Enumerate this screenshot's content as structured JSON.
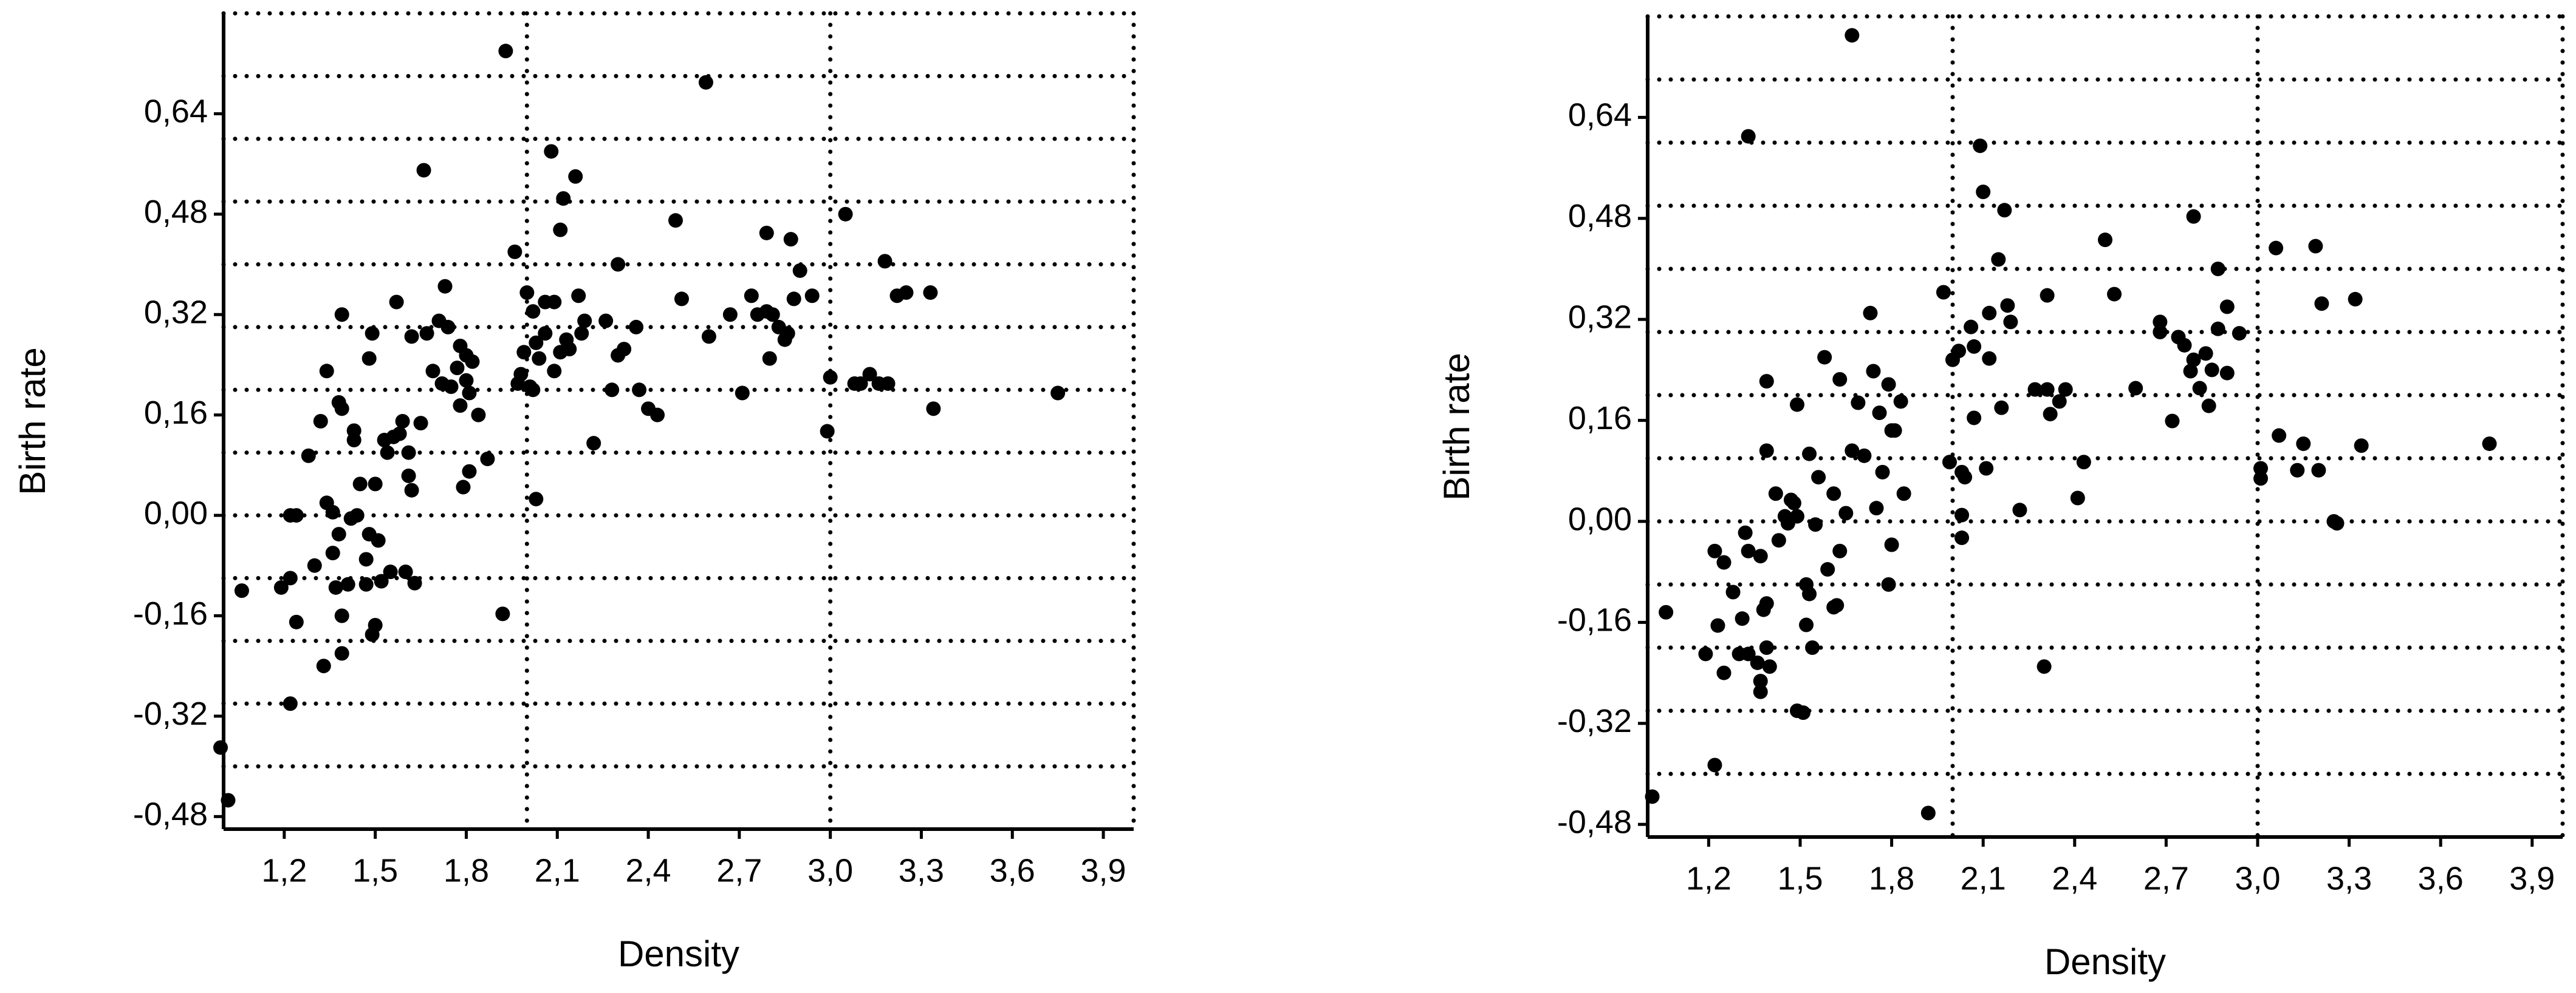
{
  "chart_data": [
    {
      "type": "scatter",
      "x_label": "Density",
      "y_label": "Birth rate",
      "color": "#000000",
      "xlim": [
        1.0,
        4.0
      ],
      "ylim": [
        -0.5,
        0.8
      ],
      "xticks": [
        {
          "value": 1.2,
          "label": "1,2"
        },
        {
          "value": 1.5,
          "label": "1,5"
        },
        {
          "value": 1.8,
          "label": "1,8"
        },
        {
          "value": 2.1,
          "label": "2,1"
        },
        {
          "value": 2.4,
          "label": "2,4"
        },
        {
          "value": 2.7,
          "label": "2,7"
        },
        {
          "value": 3.0,
          "label": "3,0"
        },
        {
          "value": 3.3,
          "label": "3,3"
        },
        {
          "value": 3.6,
          "label": "3,6"
        },
        {
          "value": 3.9,
          "label": "3,9"
        }
      ],
      "yticks": [
        {
          "value": 0.64,
          "label": "0,64"
        },
        {
          "value": 0.48,
          "label": "0,48"
        },
        {
          "value": 0.32,
          "label": "0,32"
        },
        {
          "value": 0.16,
          "label": "0,16"
        },
        {
          "value": 0,
          "label": "0,00"
        },
        {
          "value": -0.16,
          "label": "-0,16"
        },
        {
          "value": -0.32,
          "label": "-0,32"
        },
        {
          "value": -0.48,
          "label": "-0,48"
        }
      ],
      "hgrid": [
        0.7,
        0.6,
        0.5,
        0.4,
        0.3,
        0.2,
        0.1,
        0,
        -0.1,
        -0.2,
        -0.3,
        -0.4
      ],
      "vgrid": [
        2.0,
        3.0
      ],
      "x": [
        0.99,
        1.015,
        1.06,
        1.19,
        1.22,
        1.24,
        1.22,
        1.22,
        1.24,
        1.28,
        1.3,
        1.32,
        1.34,
        1.33,
        1.34,
        1.36,
        1.36,
        1.37,
        1.38,
        1.38,
        1.39,
        1.39,
        1.39,
        1.39,
        1.41,
        1.42,
        1.43,
        1.43,
        1.44,
        1.45,
        1.47,
        1.47,
        1.48,
        1.48,
        1.49,
        1.49,
        1.5,
        1.5,
        1.51,
        1.52,
        1.53,
        1.54,
        1.55,
        1.56,
        1.57,
        1.58,
        1.59,
        1.6,
        1.61,
        1.61,
        1.62,
        1.62,
        1.63,
        1.65,
        1.66,
        1.67,
        1.69,
        1.71,
        1.72,
        1.73,
        1.74,
        1.75,
        1.77,
        1.78,
        1.78,
        1.79,
        1.8,
        1.8,
        1.81,
        1.81,
        1.82,
        1.84,
        1.87,
        1.92,
        1.93,
        1.96,
        1.97,
        1.98,
        1.99,
        2.0,
        2.01,
        2.02,
        2.02,
        2.03,
        2.03,
        2.04,
        2.06,
        2.06,
        2.08,
        2.09,
        2.09,
        2.11,
        2.11,
        2.12,
        2.13,
        2.14,
        2.16,
        2.17,
        2.18,
        2.19,
        2.22,
        2.26,
        2.28,
        2.3,
        2.3,
        2.32,
        2.36,
        2.37,
        2.4,
        2.43,
        2.49,
        2.51,
        2.59,
        2.6,
        2.67,
        2.71,
        2.74,
        2.76,
        2.79,
        2.79,
        2.8,
        2.81,
        2.83,
        2.85,
        2.86,
        2.88,
        2.9,
        2.87,
        2.94,
        2.99,
        3.0,
        3.05,
        3.08,
        3.1,
        3.13,
        3.16,
        3.18,
        3.19,
        3.22,
        3.25,
        3.33,
        3.34,
        3.75
      ],
      "values": [
        -0.37,
        -0.454,
        -0.12,
        -0.115,
        0.0,
        0.0,
        -0.3,
        -0.1,
        -0.17,
        0.095,
        -0.08,
        0.15,
        0.23,
        -0.24,
        0.02,
        0.005,
        -0.06,
        -0.115,
        0.18,
        -0.03,
        0.32,
        0.17,
        -0.16,
        -0.22,
        -0.11,
        -0.005,
        0.135,
        0.12,
        0.0,
        0.05,
        -0.07,
        -0.11,
        -0.03,
        0.25,
        0.29,
        -0.19,
        0.05,
        -0.175,
        -0.04,
        -0.105,
        0.12,
        0.1,
        -0.09,
        0.125,
        0.34,
        0.13,
        0.15,
        -0.09,
        0.063,
        0.1,
        0.285,
        0.04,
        -0.108,
        0.147,
        0.55,
        0.29,
        0.23,
        0.31,
        0.21,
        0.365,
        0.3,
        0.205,
        0.235,
        0.27,
        0.175,
        0.045,
        0.255,
        0.215,
        0.195,
        0.07,
        0.245,
        0.16,
        0.09,
        -0.157,
        0.74,
        0.42,
        0.21,
        0.225,
        0.26,
        0.355,
        0.205,
        0.325,
        0.2,
        0.275,
        0.026,
        0.25,
        0.34,
        0.29,
        0.58,
        0.23,
        0.34,
        0.455,
        0.26,
        0.505,
        0.28,
        0.265,
        0.54,
        0.35,
        0.29,
        0.31,
        0.115,
        0.31,
        0.2,
        0.4,
        0.255,
        0.265,
        0.3,
        0.2,
        0.17,
        0.16,
        0.47,
        0.345,
        0.69,
        0.285,
        0.32,
        0.195,
        0.35,
        0.32,
        0.45,
        0.325,
        0.25,
        0.32,
        0.3,
        0.28,
        0.29,
        0.345,
        0.39,
        0.44,
        0.35,
        0.134,
        0.22,
        0.48,
        0.21,
        0.21,
        0.225,
        0.21,
        0.405,
        0.21,
        0.35,
        0.355,
        0.355,
        0.17,
        0.195
      ]
    },
    {
      "type": "scatter",
      "x_label": "Density",
      "y_label": "Birth rate",
      "color": "#000000",
      "xlim": [
        1.0,
        4.0
      ],
      "ylim": [
        -0.5,
        0.8
      ],
      "xticks": [
        {
          "value": 1.2,
          "label": "1,2"
        },
        {
          "value": 1.5,
          "label": "1,5"
        },
        {
          "value": 1.8,
          "label": "1,8"
        },
        {
          "value": 2.1,
          "label": "2,1"
        },
        {
          "value": 2.4,
          "label": "2,4"
        },
        {
          "value": 2.7,
          "label": "2,7"
        },
        {
          "value": 3.0,
          "label": "3,0"
        },
        {
          "value": 3.3,
          "label": "3,3"
        },
        {
          "value": 3.6,
          "label": "3,6"
        },
        {
          "value": 3.9,
          "label": "3,9"
        }
      ],
      "yticks": [
        {
          "value": 0.64,
          "label": "0,64"
        },
        {
          "value": 0.48,
          "label": "0,48"
        },
        {
          "value": 0.32,
          "label": "0,32"
        },
        {
          "value": 0.16,
          "label": "0,16"
        },
        {
          "value": 0,
          "label": "0,00"
        },
        {
          "value": -0.16,
          "label": "-0,16"
        },
        {
          "value": -0.32,
          "label": "-0,32"
        },
        {
          "value": -0.48,
          "label": "-0,48"
        }
      ],
      "hgrid": [
        0.7,
        0.6,
        0.5,
        0.4,
        0.3,
        0.2,
        0.1,
        0,
        -0.1,
        -0.2,
        -0.3,
        -0.4
      ],
      "vgrid": [
        2.0,
        3.0
      ],
      "x": [
        1.015,
        1.06,
        1.19,
        1.22,
        1.22,
        1.23,
        1.25,
        1.25,
        1.28,
        1.3,
        1.31,
        1.32,
        1.33,
        1.33,
        1.33,
        1.36,
        1.37,
        1.37,
        1.37,
        1.38,
        1.39,
        1.39,
        1.39,
        1.39,
        1.4,
        1.42,
        1.43,
        1.45,
        1.46,
        1.47,
        1.48,
        1.49,
        1.49,
        1.49,
        1.51,
        1.52,
        1.52,
        1.53,
        1.53,
        1.54,
        1.55,
        1.56,
        1.58,
        1.59,
        1.61,
        1.61,
        1.62,
        1.63,
        1.63,
        1.65,
        1.67,
        1.67,
        1.69,
        1.71,
        1.73,
        1.74,
        1.75,
        1.76,
        1.77,
        1.79,
        1.79,
        1.8,
        1.8,
        1.81,
        1.83,
        1.84,
        1.92,
        1.97,
        1.99,
        2.0,
        2.02,
        2.03,
        2.03,
        2.03,
        2.04,
        2.06,
        2.07,
        2.07,
        2.09,
        2.1,
        2.11,
        2.12,
        2.12,
        2.15,
        2.16,
        2.17,
        2.18,
        2.19,
        2.22,
        2.27,
        2.3,
        2.31,
        2.31,
        2.32,
        2.35,
        2.37,
        2.41,
        2.43,
        2.5,
        2.53,
        2.6,
        2.68,
        2.68,
        2.72,
        2.74,
        2.76,
        2.78,
        2.79,
        2.79,
        2.81,
        2.83,
        2.84,
        2.85,
        2.87,
        2.87,
        2.9,
        2.9,
        2.94,
        3.01,
        3.01,
        3.06,
        3.07,
        3.13,
        3.15,
        3.19,
        3.2,
        3.21,
        3.25,
        3.26,
        3.32,
        3.34,
        3.76
      ],
      "values": [
        -0.436,
        -0.144,
        -0.21,
        -0.386,
        -0.047,
        -0.165,
        -0.065,
        -0.24,
        -0.112,
        -0.21,
        -0.154,
        -0.018,
        -0.047,
        0.61,
        -0.21,
        -0.224,
        -0.055,
        -0.253,
        -0.27,
        -0.14,
        0.112,
        0.222,
        -0.2,
        -0.13,
        -0.23,
        0.044,
        -0.03,
        0.008,
        -0.003,
        0.034,
        0.029,
        0.185,
        0.008,
        -0.3,
        -0.303,
        -0.164,
        -0.1,
        0.107,
        -0.115,
        -0.2,
        -0.005,
        0.07,
        0.26,
        -0.076,
        0.044,
        -0.136,
        -0.133,
        0.225,
        -0.047,
        0.013,
        0.112,
        0.77,
        0.188,
        0.104,
        0.33,
        0.238,
        0.021,
        0.172,
        0.078,
        -0.1,
        0.217,
        0.144,
        -0.037,
        0.144,
        0.19,
        0.044,
        -0.462,
        0.363,
        0.094,
        0.256,
        0.27,
        -0.026,
        0.01,
        0.078,
        0.07,
        0.308,
        0.277,
        0.164,
        0.595,
        0.522,
        0.084,
        0.33,
        0.258,
        0.415,
        0.18,
        0.493,
        0.342,
        0.316,
        0.018,
        0.209,
        -0.23,
        0.358,
        0.209,
        0.17,
        0.19,
        0.209,
        0.037,
        0.094,
        0.446,
        0.36,
        0.211,
        0.316,
        0.3,
        0.159,
        0.292,
        0.279,
        0.238,
        0.483,
        0.256,
        0.211,
        0.266,
        0.183,
        0.24,
        0.4,
        0.305,
        0.34,
        0.235,
        0.298,
        0.084,
        0.068,
        0.433,
        0.136,
        0.081,
        0.123,
        0.436,
        0.081,
        0.345,
        0.0,
        -0.003,
        0.352,
        0.12,
        0.123
      ]
    }
  ]
}
